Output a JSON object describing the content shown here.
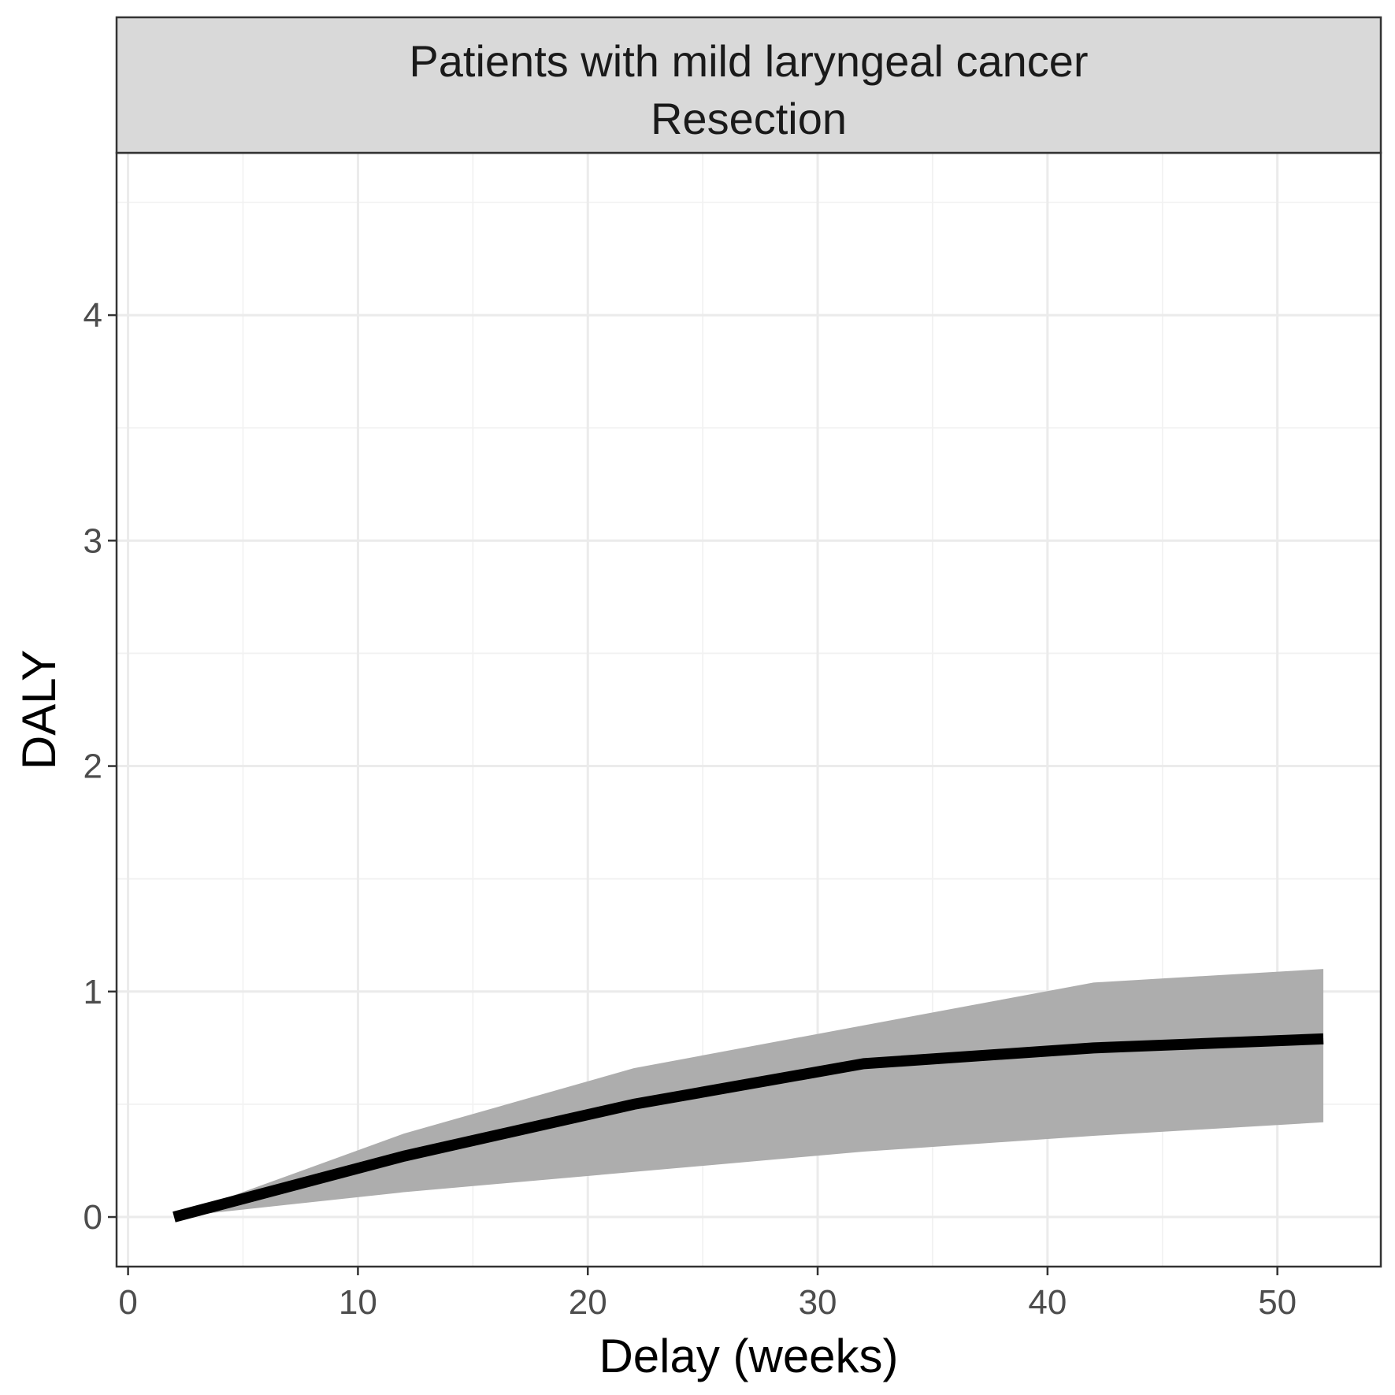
{
  "chart_data": {
    "type": "line",
    "facet_strip": {
      "line1": "Patients with mild laryngeal cancer",
      "line2": "Resection"
    },
    "xlabel": "Delay (weeks)",
    "ylabel": "DALY",
    "xlim": [
      -0.5,
      54.5
    ],
    "ylim": [
      -0.22,
      4.72
    ],
    "x_ticks": [
      0,
      10,
      20,
      30,
      40,
      50
    ],
    "x_tick_labels": [
      "0",
      "10",
      "20",
      "30",
      "40",
      "50"
    ],
    "x_minor_ticks": [
      5,
      15,
      25,
      35,
      45
    ],
    "y_ticks": [
      0,
      1,
      2,
      3,
      4
    ],
    "y_tick_labels": [
      "0",
      "1",
      "2",
      "3",
      "4"
    ],
    "y_minor_ticks": [
      0.5,
      1.5,
      2.5,
      3.5,
      4.5
    ],
    "grid": true,
    "legend": "none",
    "series": [
      {
        "x": [
          2,
          12,
          22,
          32,
          42,
          52
        ],
        "y": [
          0,
          0.27,
          0.5,
          0.68,
          0.75,
          0.79
        ],
        "lower": [
          0,
          0.11,
          0.2,
          0.29,
          0.36,
          0.42
        ],
        "upper": [
          0,
          0.37,
          0.66,
          0.85,
          1.04,
          1.1
        ],
        "line_color": "#000000",
        "ribbon_color": "#adadad"
      }
    ],
    "colors": {
      "panel_border": "#333333",
      "strip_fill": "#d9d9d9",
      "grid_major": "#ebebeb",
      "grid_minor": "#f2f2f2",
      "tick": "#333333"
    }
  }
}
